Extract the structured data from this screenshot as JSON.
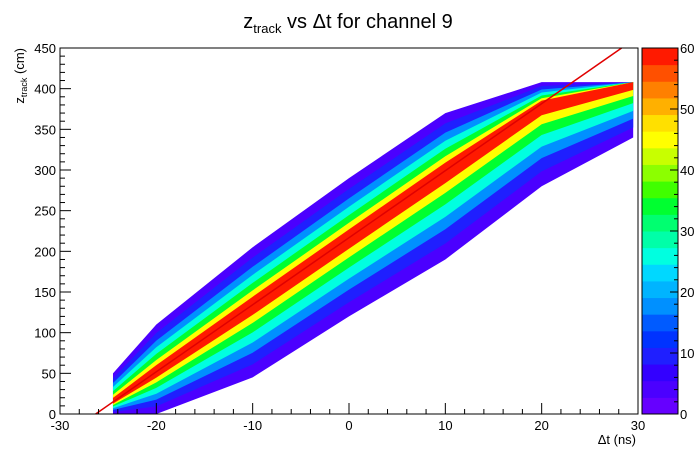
{
  "chart_data": {
    "type": "heatmap",
    "title": {
      "base": "z",
      "sub": "track",
      "rest": " vs Δt for channel 9"
    },
    "xlabel": "Δt (ns)",
    "ylabel": {
      "base": "z",
      "sub": "track",
      "rest": " (cm)"
    },
    "xlim": [
      -30,
      30
    ],
    "ylim": [
      0,
      450
    ],
    "x_ticks": [
      -30,
      -20,
      -10,
      0,
      10,
      20,
      30
    ],
    "y_ticks": [
      0,
      50,
      100,
      150,
      200,
      250,
      300,
      350,
      400,
      450
    ],
    "colorbar": {
      "range": [
        0,
        60
      ],
      "ticks": [
        0,
        10,
        20,
        30,
        40,
        50,
        60
      ],
      "palette": [
        "#6600ff",
        "#4b00ff",
        "#3300ff",
        "#1f1fff",
        "#0033ff",
        "#005bff",
        "#0090ff",
        "#00b4ff",
        "#00d8ff",
        "#00ffe0",
        "#00ffa8",
        "#00ff70",
        "#00ff30",
        "#40ff00",
        "#8cff00",
        "#c8ff00",
        "#ffff00",
        "#ffe000",
        "#ffb000",
        "#ff8000",
        "#ff5000",
        "#ff1a00"
      ]
    },
    "fit_line": {
      "color": "#e00000",
      "points": [
        [
          -26.3,
          0
        ],
        [
          28.3,
          450
        ]
      ]
    },
    "band": {
      "description_points": [
        {
          "x": -24.5,
          "z_low": 0,
          "z_high": 50
        },
        {
          "x": -20,
          "z_low": 0,
          "z_high": 110
        },
        {
          "x": -10,
          "z_low": 45,
          "z_high": 205
        },
        {
          "x": 0,
          "z_low": 120,
          "z_high": 290
        },
        {
          "x": 10,
          "z_low": 190,
          "z_high": 370
        },
        {
          "x": 20,
          "z_low": 280,
          "z_high": 408
        },
        {
          "x": 29.5,
          "z_low": 340,
          "z_high": 408
        }
      ],
      "z_cap": 408
    }
  }
}
